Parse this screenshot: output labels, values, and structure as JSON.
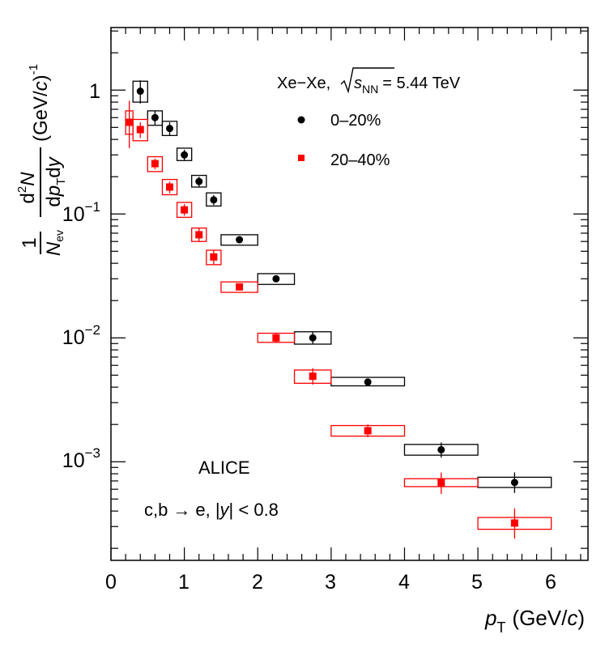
{
  "chart_data": {
    "type": "scatter",
    "title": "",
    "xlabel": "p_T (GeV/c)",
    "ylabel": "1/N_ev d2N/(dp_T dy) (GeV/c)^-1",
    "xlim": [
      0,
      6.5
    ],
    "ylim": [
      0.00016,
      3.2
    ],
    "yscale": "log",
    "x_ticks": [
      0,
      1,
      2,
      3,
      4,
      5,
      6
    ],
    "y_ticks": [
      {
        "value": 1,
        "base": "1",
        "exp": ""
      },
      {
        "value": 0.1,
        "base": "10",
        "exp": "−1"
      },
      {
        "value": 0.01,
        "base": "10",
        "exp": "−2"
      },
      {
        "value": 0.001,
        "base": "10",
        "exp": "−3"
      }
    ],
    "legend": {
      "header": {
        "prefix": "Xe−Xe,",
        "root": "s",
        "sub": "NN",
        "suffix": "= 5.44 TeV"
      },
      "entries": [
        "0–20%",
        "20–40%"
      ]
    },
    "annotations": {
      "experiment": "ALICE",
      "process_prefix": "c,b",
      "arrow": "→",
      "process_suffix": "e, |",
      "y_var": "y",
      "cut": "| < 0.8"
    },
    "ylabel_parts": {
      "one": "1",
      "nev": "N",
      "nev_sub": "ev",
      "d": "d",
      "two": "2",
      "n": "N",
      "dp": "d",
      "p": "p",
      "t": "T",
      "dy": "d",
      "y": "y",
      "unit_open": "(GeV/",
      "c": "c",
      "unit_close": ")",
      "exp": "-1"
    },
    "xlabel_parts": {
      "p": "p",
      "t": "T",
      "unit_open": "(GeV/",
      "c": "c",
      "unit_close": ")"
    },
    "series": [
      {
        "name": "0–20%",
        "color": "#000000",
        "marker": "circle",
        "x": [
          0.4,
          0.6,
          0.8,
          1.0,
          1.2,
          1.4,
          1.75,
          2.25,
          2.75,
          3.5,
          4.5,
          5.5
        ],
        "x_low": [
          0.3,
          0.5,
          0.7,
          0.9,
          1.1,
          1.3,
          1.5,
          2.0,
          2.5,
          3.0,
          4.0,
          5.0
        ],
        "x_high": [
          0.5,
          0.7,
          0.9,
          1.1,
          1.3,
          1.5,
          2.0,
          2.5,
          3.0,
          4.0,
          5.0,
          6.0
        ],
        "y": [
          0.98,
          0.6,
          0.49,
          0.3,
          0.183,
          0.13,
          0.062,
          0.03,
          0.01,
          0.0044,
          0.00125,
          0.00068
        ],
        "stat_low": [
          0.78,
          0.52,
          0.43,
          0.27,
          0.165,
          0.118,
          0.059,
          0.0284,
          0.0089,
          0.0041,
          0.00108,
          0.00056
        ],
        "stat_high": [
          1.2,
          0.68,
          0.55,
          0.33,
          0.2,
          0.142,
          0.065,
          0.0316,
          0.0112,
          0.0047,
          0.00143,
          0.00082
        ],
        "sys_low": [
          0.8,
          0.52,
          0.43,
          0.27,
          0.165,
          0.116,
          0.056,
          0.027,
          0.0089,
          0.0041,
          0.00113,
          0.00062
        ],
        "sys_high": [
          1.18,
          0.68,
          0.56,
          0.34,
          0.205,
          0.148,
          0.068,
          0.033,
          0.0112,
          0.0048,
          0.00138,
          0.00075
        ]
      },
      {
        "name": "20–40%",
        "color": "#ff0000",
        "marker": "square",
        "x": [
          0.25,
          0.4,
          0.6,
          0.8,
          1.0,
          1.2,
          1.4,
          1.75,
          2.25,
          2.75,
          3.5,
          4.5,
          5.5
        ],
        "x_low": [
          0.2,
          0.3,
          0.5,
          0.7,
          0.9,
          1.1,
          1.3,
          1.5,
          2.0,
          2.5,
          3.0,
          4.0,
          5.0
        ],
        "x_high": [
          0.3,
          0.5,
          0.7,
          0.9,
          1.1,
          1.3,
          1.5,
          2.0,
          2.5,
          3.0,
          4.0,
          5.0,
          6.0
        ],
        "y": [
          0.55,
          0.48,
          0.255,
          0.165,
          0.108,
          0.068,
          0.045,
          0.0258,
          0.01,
          0.0049,
          0.00178,
          0.00068,
          0.00032
        ],
        "stat_low": [
          0.34,
          0.41,
          0.23,
          0.147,
          0.097,
          0.06,
          0.039,
          0.0246,
          0.0091,
          0.0042,
          0.00158,
          0.00055,
          0.00024
        ],
        "stat_high": [
          0.82,
          0.55,
          0.28,
          0.183,
          0.12,
          0.077,
          0.051,
          0.027,
          0.011,
          0.0057,
          0.002,
          0.00082,
          0.00042
        ],
        "sys_low": [
          0.44,
          0.39,
          0.22,
          0.143,
          0.094,
          0.06,
          0.039,
          0.0233,
          0.0092,
          0.0043,
          0.00161,
          0.00063,
          0.000285
        ],
        "sys_high": [
          0.68,
          0.58,
          0.29,
          0.19,
          0.124,
          0.077,
          0.051,
          0.0283,
          0.0109,
          0.0055,
          0.00196,
          0.00073,
          0.000355
        ]
      }
    ]
  }
}
